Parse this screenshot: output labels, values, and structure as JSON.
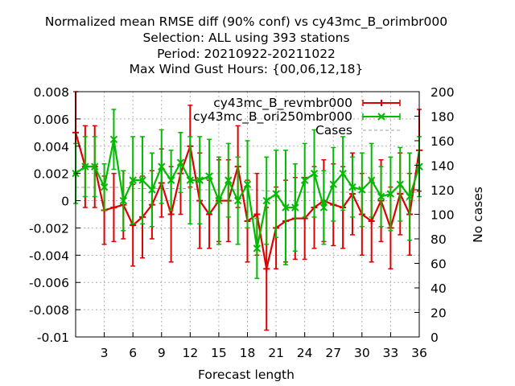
{
  "chart_data": {
    "type": "line",
    "title_lines": [
      "Normalized mean RMSE diff (90% conf) vs cy43mc_B_orimbr000",
      "Selection: ALL using   393 stations",
      "Period: 20210922-20211022",
      "Max Wind Gust   Hours: {00,06,12,18}"
    ],
    "xlabel": "Forecast length",
    "ylabel": "",
    "y2label": "No cases",
    "xlim": [
      0,
      36
    ],
    "ylim": [
      -0.01,
      0.008
    ],
    "y2lim": [
      0,
      200
    ],
    "xticks": [
      3,
      6,
      9,
      12,
      15,
      18,
      21,
      24,
      27,
      30,
      33,
      36
    ],
    "xtick_labels": [
      "3",
      "6",
      "9",
      "12",
      "15",
      "18",
      "21",
      "24",
      "27",
      "30",
      "33",
      "36"
    ],
    "yticks": [
      -0.01,
      -0.008,
      -0.006,
      -0.004,
      -0.002,
      0,
      0.002,
      0.004,
      0.006,
      0.008
    ],
    "ytick_labels": [
      "-0.01",
      "-0.008",
      "-0.006",
      "-0.004",
      "-0.002",
      "0",
      "0.002",
      "0.004",
      "0.006",
      "0.008"
    ],
    "y2ticks": [
      0,
      20,
      40,
      60,
      80,
      100,
      120,
      140,
      160,
      180,
      200
    ],
    "y2tick_labels": [
      "0",
      "20",
      "40",
      "60",
      "80",
      "100",
      "120",
      "140",
      "160",
      "180",
      "200"
    ],
    "grid": true,
    "legend_position": "top-right",
    "series": [
      {
        "name": "cy43mc_B_revmbr000",
        "color": "#dd0000",
        "marker": "plus",
        "x": [
          0,
          1,
          2,
          3,
          4,
          5,
          6,
          7,
          8,
          9,
          10,
          11,
          12,
          13,
          14,
          15,
          16,
          17,
          18,
          19,
          20,
          21,
          22,
          23,
          24,
          25,
          26,
          27,
          28,
          29,
          30,
          31,
          32,
          33,
          34,
          35,
          36
        ],
        "y": [
          0.005,
          0.0025,
          0.0025,
          -0.0007,
          -0.0005,
          -0.0003,
          -0.0018,
          -0.0012,
          -0.0003,
          0.0013,
          -0.001,
          0.002,
          0.004,
          0.0,
          -0.001,
          0.0,
          0.0,
          0.0025,
          -0.0015,
          -0.001,
          -0.005,
          -0.002,
          -0.0015,
          -0.0013,
          -0.0013,
          -0.0005,
          0.0,
          -0.0003,
          -0.0005,
          0.0005,
          -0.001,
          -0.0015,
          0.0,
          -0.002,
          0.0005,
          -0.001,
          0.0037
        ],
        "err": [
          0.003,
          0.003,
          0.003,
          0.0025,
          0.0025,
          0.0025,
          0.003,
          0.003,
          0.0025,
          0.0025,
          0.0035,
          0.003,
          0.003,
          0.0035,
          0.0025,
          0.003,
          0.003,
          0.003,
          0.003,
          0.003,
          0.0045,
          0.003,
          0.003,
          0.003,
          0.003,
          0.003,
          0.003,
          0.003,
          0.003,
          0.003,
          0.003,
          0.003,
          0.003,
          0.003,
          0.003,
          0.003,
          0.003
        ]
      },
      {
        "name": "cy43mc_B_ori250mbr000",
        "color": "#00bb00",
        "marker": "x",
        "x": [
          0,
          1,
          2,
          3,
          4,
          5,
          6,
          7,
          8,
          9,
          10,
          11,
          12,
          13,
          14,
          15,
          16,
          17,
          18,
          19,
          20,
          21,
          22,
          23,
          24,
          25,
          26,
          27,
          28,
          29,
          30,
          31,
          32,
          33,
          34,
          35,
          36
        ],
        "y": [
          0.002,
          0.0025,
          0.0025,
          0.001,
          0.0045,
          0.0,
          0.0015,
          0.0015,
          0.0008,
          0.0025,
          0.0015,
          0.0028,
          0.0015,
          0.0015,
          0.0018,
          0.0,
          0.0015,
          0.0,
          0.0012,
          -0.0035,
          0.0,
          0.0005,
          -0.0005,
          -0.0005,
          0.0015,
          0.002,
          -0.0005,
          0.0012,
          0.002,
          0.001,
          0.0008,
          0.0015,
          0.0003,
          0.0005,
          0.0012,
          0.0003,
          0.0025
        ],
        "err": [
          0.0022,
          0.0022,
          0.0022,
          0.0017,
          0.0022,
          0.0022,
          0.0032,
          0.0032,
          0.0027,
          0.0027,
          0.0022,
          0.0022,
          0.0032,
          0.0032,
          0.0027,
          0.0032,
          0.0027,
          0.0032,
          0.0032,
          0.0022,
          0.0032,
          0.0032,
          0.0042,
          0.0032,
          0.0027,
          0.0032,
          0.0027,
          0.0027,
          0.0027,
          0.0022,
          0.0027,
          0.0027,
          0.0022,
          0.0027,
          0.0027,
          0.0032,
          0.0022
        ]
      },
      {
        "name": "Cases",
        "color": "#a0a0a0",
        "axis": "right",
        "x": [
          0,
          1,
          2,
          3,
          4,
          5,
          6,
          7,
          8,
          9,
          10,
          11,
          12,
          13,
          14,
          15,
          16,
          17,
          18,
          19,
          20,
          21,
          22,
          23,
          24,
          25,
          26,
          27,
          28,
          29,
          30,
          31,
          32,
          33,
          34,
          35,
          36
        ],
        "y": [
          122,
          122,
          122,
          122,
          122,
          122,
          121,
          121,
          121,
          121,
          121,
          121,
          121,
          120,
          120,
          120,
          120,
          120,
          120,
          120,
          119,
          119,
          119,
          118,
          118,
          118,
          118,
          118,
          118,
          118,
          118,
          118,
          118,
          118,
          118,
          118,
          118
        ]
      }
    ]
  }
}
